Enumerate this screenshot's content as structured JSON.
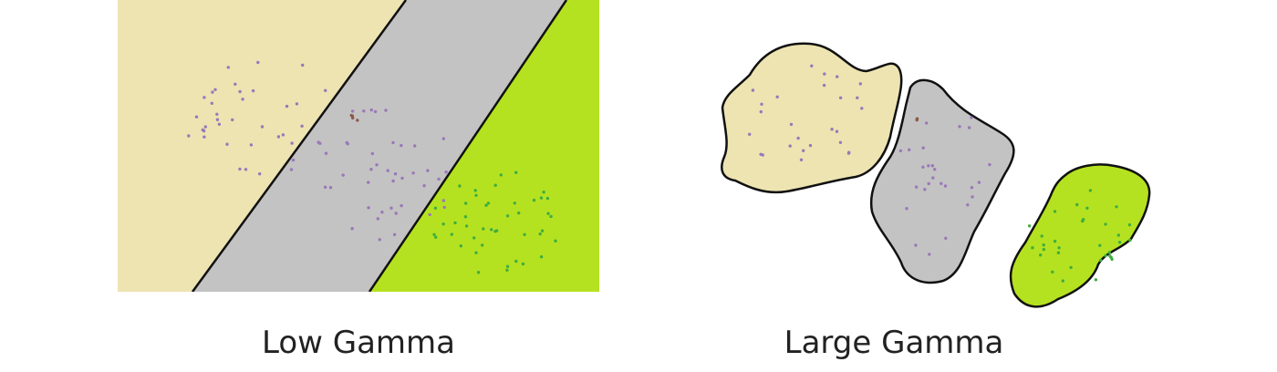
{
  "captions": {
    "left": "Low Gamma",
    "right": "Large Gamma"
  },
  "colors": {
    "class_a_region": "#ede4b2",
    "class_b_region": "#c3c3c3",
    "class_c_region": "#b5e220",
    "boundary": "#111111",
    "point_purple": "#9a78b8",
    "point_brown": "#8c5a4a",
    "point_green": "#3fae3f"
  }
}
